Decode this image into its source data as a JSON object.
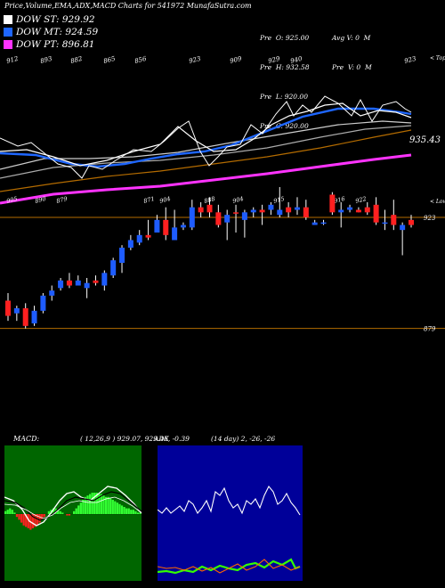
{
  "header": {
    "title": "Price,Volume,EMA,ADX,MACD Charts for 541972  MunafaSutra.com"
  },
  "legend": [
    {
      "label": "DOW ST: 929.92",
      "color": "#ffffff"
    },
    {
      "label": "DOW MT: 924.59",
      "color": "#1e66ff"
    },
    {
      "label": "DOW PT: 896.81",
      "color": "#ff33ff"
    }
  ],
  "ohlc": {
    "pre": [
      "Pre  O: 925.00",
      "Pre  H: 932.58",
      "Pre  L: 920.00",
      "Pre  C: 920.00"
    ],
    "avg": [
      "Avg V: 0  M",
      "Pre  V: 0  M"
    ]
  },
  "top_labels": {
    "tick_row": [
      "912",
      "893",
      "882",
      "865",
      "856",
      "923",
      "909",
      "929",
      "940",
      "923"
    ],
    "right_label": "< Tops",
    "last_value": "935.43"
  },
  "mid_labels": {
    "tick_row": [
      "905",
      "890",
      "879",
      "871",
      "904",
      "888",
      "904",
      "915",
      "916",
      "922"
    ],
    "right_label": "< Lows",
    "level_high": "923",
    "level_low": "879"
  },
  "macd": {
    "label": "MACD:",
    "params": "( 12,26,9 ) 929.07,  929.46,  -0.39"
  },
  "adx": {
    "label": "ADX",
    "params": "(14  day) 2,  -26,  -26"
  },
  "colors": {
    "up": "#1e5cff",
    "down": "#ff2020",
    "ema_short": "#ffffff",
    "ema_mid": "#1e66ff",
    "ema_long": "#ff33ff",
    "orange": "#b36b00",
    "macd_bg": "#006600",
    "macd_hist_pos": "#33ff33",
    "macd_hist_neg": "#ff2020",
    "adx_bg": "#000099",
    "adx_plus": "#33ff00",
    "adx_minus": "#ff6600"
  },
  "chart_data": [
    {
      "type": "line",
      "title": "Price,Volume,EMA,ADX,MACD Charts for 541972",
      "series": [
        {
          "name": "DOW ST",
          "values": [
            929.92
          ]
        },
        {
          "name": "DOW MT",
          "values": [
            924.59
          ]
        },
        {
          "name": "DOW PT",
          "values": [
            896.81
          ]
        }
      ]
    },
    {
      "type": "bar",
      "title": "",
      "candles": [
        {
          "o": 890,
          "h": 893,
          "l": 882,
          "c": 884,
          "dir": "down"
        },
        {
          "o": 885,
          "h": 888,
          "l": 882,
          "c": 887,
          "dir": "up"
        },
        {
          "o": 887,
          "h": 889,
          "l": 879,
          "c": 880,
          "dir": "down"
        },
        {
          "o": 881,
          "h": 888,
          "l": 880,
          "c": 886,
          "dir": "up"
        },
        {
          "o": 886,
          "h": 893,
          "l": 885,
          "c": 892,
          "dir": "up"
        },
        {
          "o": 892,
          "h": 896,
          "l": 890,
          "c": 894,
          "dir": "up"
        },
        {
          "o": 895,
          "h": 899,
          "l": 894,
          "c": 898,
          "dir": "up"
        },
        {
          "o": 898,
          "h": 901,
          "l": 895,
          "c": 896,
          "dir": "down"
        },
        {
          "o": 896,
          "h": 900,
          "l": 896,
          "c": 898,
          "dir": "up"
        },
        {
          "o": 895,
          "h": 899,
          "l": 891,
          "c": 897,
          "dir": "up"
        },
        {
          "o": 898,
          "h": 900,
          "l": 896,
          "c": 897,
          "dir": "down"
        },
        {
          "o": 896,
          "h": 902,
          "l": 894,
          "c": 901,
          "dir": "up"
        },
        {
          "o": 900,
          "h": 907,
          "l": 899,
          "c": 906,
          "dir": "up"
        },
        {
          "o": 905,
          "h": 912,
          "l": 901,
          "c": 911,
          "dir": "up"
        },
        {
          "o": 911,
          "h": 916,
          "l": 910,
          "c": 914,
          "dir": "up"
        },
        {
          "o": 913,
          "h": 918,
          "l": 912,
          "c": 916,
          "dir": "up"
        },
        {
          "o": 916,
          "h": 922,
          "l": 914,
          "c": 915,
          "dir": "down"
        },
        {
          "o": 917,
          "h": 924,
          "l": 917,
          "c": 922,
          "dir": "up"
        },
        {
          "o": 922,
          "h": 927,
          "l": 914,
          "c": 916,
          "dir": "down"
        },
        {
          "o": 914,
          "h": 926,
          "l": 914,
          "c": 919,
          "dir": "up"
        },
        {
          "o": 919,
          "h": 921,
          "l": 918,
          "c": 920,
          "dir": "up"
        },
        {
          "o": 919,
          "h": 930,
          "l": 918,
          "c": 927,
          "dir": "up"
        },
        {
          "o": 927,
          "h": 929,
          "l": 923,
          "c": 925,
          "dir": "down"
        },
        {
          "o": 928,
          "h": 931,
          "l": 923,
          "c": 925,
          "dir": "down"
        },
        {
          "o": 925,
          "h": 928,
          "l": 919,
          "c": 920,
          "dir": "down"
        },
        {
          "o": 921,
          "h": 926,
          "l": 914,
          "c": 924,
          "dir": "up"
        },
        {
          "o": 925,
          "h": 928,
          "l": 917,
          "c": 925,
          "dir": "down"
        },
        {
          "o": 922,
          "h": 926,
          "l": 915,
          "c": 925,
          "dir": "up"
        },
        {
          "o": 925,
          "h": 927,
          "l": 923,
          "c": 926,
          "dir": "up"
        },
        {
          "o": 926,
          "h": 928,
          "l": 920,
          "c": 925,
          "dir": "down"
        },
        {
          "o": 926,
          "h": 929,
          "l": 924,
          "c": 928,
          "dir": "up"
        },
        {
          "o": 924,
          "h": 935,
          "l": 923,
          "c": 926,
          "dir": "up"
        },
        {
          "o": 927,
          "h": 929,
          "l": 923,
          "c": 925,
          "dir": "down"
        },
        {
          "o": 926,
          "h": 931,
          "l": 924,
          "c": 927,
          "dir": "up"
        },
        {
          "o": 927,
          "h": 930,
          "l": 922,
          "c": 923,
          "dir": "down"
        },
        {
          "o": 921,
          "h": 922,
          "l": 920,
          "c": 920,
          "dir": "up"
        },
        {
          "o": 921,
          "h": 922,
          "l": 920,
          "c": 921,
          "dir": "up"
        },
        {
          "o": 932,
          "h": 933,
          "l": 924,
          "c": 925,
          "dir": "down"
        },
        {
          "o": 925,
          "h": 929,
          "l": 919,
          "c": 926,
          "dir": "up"
        },
        {
          "o": 926,
          "h": 928,
          "l": 925,
          "c": 927,
          "dir": "up"
        },
        {
          "o": 925,
          "h": 927,
          "l": 925,
          "c": 926,
          "dir": "down"
        },
        {
          "o": 927,
          "h": 929,
          "l": 924,
          "c": 925,
          "dir": "down"
        },
        {
          "o": 928,
          "h": 931,
          "l": 920,
          "c": 921,
          "dir": "down"
        },
        {
          "o": 921,
          "h": 926,
          "l": 918,
          "c": 921,
          "dir": "up"
        },
        {
          "o": 924,
          "h": 930,
          "l": 918,
          "c": 920,
          "dir": "down"
        },
        {
          "o": 920,
          "h": 921,
          "l": 908,
          "c": 918,
          "dir": "up"
        },
        {
          "o": 922,
          "h": 924,
          "l": 919,
          "c": 920,
          "dir": "down"
        }
      ],
      "levels": [
        923,
        879
      ]
    },
    {
      "type": "bar",
      "title": "MACD",
      "series": [
        {
          "name": "MACD",
          "values": [
            929.07
          ]
        },
        {
          "name": "Signal",
          "values": [
            929.46
          ]
        },
        {
          "name": "Hist",
          "values": [
            -0.39
          ]
        }
      ]
    },
    {
      "type": "line",
      "title": "ADX",
      "series": [
        {
          "name": "ADX",
          "values": [
            2
          ]
        },
        {
          "name": "+DI",
          "values": [
            -26
          ]
        },
        {
          "name": "-DI",
          "values": [
            -26
          ]
        }
      ]
    }
  ]
}
